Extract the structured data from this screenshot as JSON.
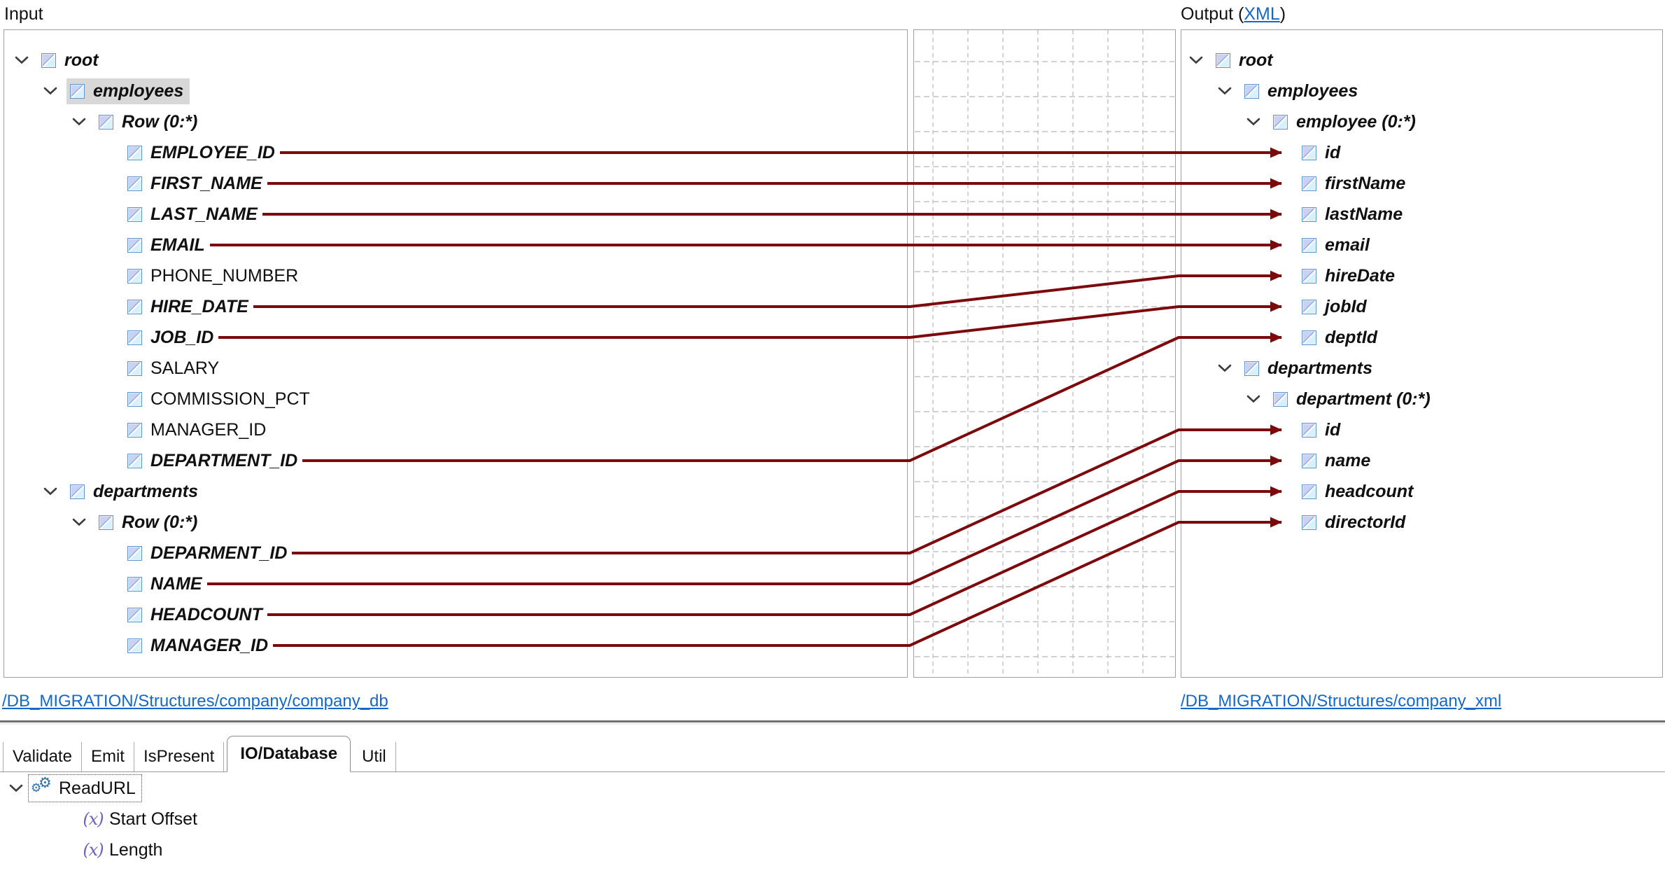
{
  "header": {
    "input_label": "Input",
    "output_prefix": "Output (",
    "output_link_label": "XML",
    "output_suffix": ")"
  },
  "left_tree": {
    "rows": [
      {
        "label": "root",
        "level": 0,
        "chevron": true,
        "emph": true
      },
      {
        "label": "employees",
        "level": 1,
        "chevron": true,
        "emph": true,
        "highlight": true
      },
      {
        "label": "Row (0:*)",
        "level": 2,
        "chevron": true,
        "emph": true
      },
      {
        "label": "EMPLOYEE_ID",
        "level": 3,
        "chevron": false,
        "emph": true
      },
      {
        "label": "FIRST_NAME",
        "level": 3,
        "chevron": false,
        "emph": true
      },
      {
        "label": "LAST_NAME",
        "level": 3,
        "chevron": false,
        "emph": true
      },
      {
        "label": "EMAIL",
        "level": 3,
        "chevron": false,
        "emph": true
      },
      {
        "label": "PHONE_NUMBER",
        "level": 3,
        "chevron": false,
        "emph": false
      },
      {
        "label": "HIRE_DATE",
        "level": 3,
        "chevron": false,
        "emph": true
      },
      {
        "label": "JOB_ID",
        "level": 3,
        "chevron": false,
        "emph": true
      },
      {
        "label": "SALARY",
        "level": 3,
        "chevron": false,
        "emph": false
      },
      {
        "label": "COMMISSION_PCT",
        "level": 3,
        "chevron": false,
        "emph": false
      },
      {
        "label": "MANAGER_ID",
        "level": 3,
        "chevron": false,
        "emph": false
      },
      {
        "label": "DEPARTMENT_ID",
        "level": 3,
        "chevron": false,
        "emph": true
      },
      {
        "label": "departments",
        "level": 1,
        "chevron": true,
        "emph": true
      },
      {
        "label": "Row (0:*)",
        "level": 2,
        "chevron": true,
        "emph": true
      },
      {
        "label": "DEPARMENT_ID",
        "level": 3,
        "chevron": false,
        "emph": true
      },
      {
        "label": "NAME",
        "level": 3,
        "chevron": false,
        "emph": true
      },
      {
        "label": "HEADCOUNT",
        "level": 3,
        "chevron": false,
        "emph": true
      },
      {
        "label": "MANAGER_ID",
        "level": 3,
        "chevron": false,
        "emph": true
      }
    ]
  },
  "right_tree": {
    "rows": [
      {
        "label": "root",
        "level": 0,
        "chevron": true,
        "emph": true
      },
      {
        "label": "employees",
        "level": 1,
        "chevron": true,
        "emph": true
      },
      {
        "label": "employee (0:*)",
        "level": 2,
        "chevron": true,
        "emph": true
      },
      {
        "label": "id",
        "level": 3,
        "chevron": false,
        "emph": true
      },
      {
        "label": "firstName",
        "level": 3,
        "chevron": false,
        "emph": true
      },
      {
        "label": "lastName",
        "level": 3,
        "chevron": false,
        "emph": true
      },
      {
        "label": "email",
        "level": 3,
        "chevron": false,
        "emph": true
      },
      {
        "label": "hireDate",
        "level": 3,
        "chevron": false,
        "emph": true
      },
      {
        "label": "jobId",
        "level": 3,
        "chevron": false,
        "emph": true
      },
      {
        "label": "deptId",
        "level": 3,
        "chevron": false,
        "emph": true
      },
      {
        "label": "departments",
        "level": 1,
        "chevron": true,
        "emph": true
      },
      {
        "label": "department (0:*)",
        "level": 2,
        "chevron": true,
        "emph": true
      },
      {
        "label": "id",
        "level": 3,
        "chevron": false,
        "emph": true
      },
      {
        "label": "name",
        "level": 3,
        "chevron": false,
        "emph": true
      },
      {
        "label": "headcount",
        "level": 3,
        "chevron": false,
        "emph": true
      },
      {
        "label": "directorId",
        "level": 3,
        "chevron": false,
        "emph": true
      }
    ]
  },
  "mappings": [
    {
      "from": 3,
      "to": 3
    },
    {
      "from": 4,
      "to": 4
    },
    {
      "from": 5,
      "to": 5
    },
    {
      "from": 6,
      "to": 6
    },
    {
      "from": 8,
      "to": 7
    },
    {
      "from": 9,
      "to": 8
    },
    {
      "from": 13,
      "to": 9
    },
    {
      "from": 16,
      "to": 12
    },
    {
      "from": 17,
      "to": 13
    },
    {
      "from": 18,
      "to": 14
    },
    {
      "from": 19,
      "to": 15
    }
  ],
  "footer_links": {
    "left": "/DB_MIGRATION/Structures/company/company_db",
    "right": "/DB_MIGRATION/Structures/company_xml"
  },
  "tabs": [
    {
      "label": "Validate",
      "active": false
    },
    {
      "label": "Emit",
      "active": false
    },
    {
      "label": "IsPresent",
      "active": false
    },
    {
      "label": "IO/Database",
      "active": true
    },
    {
      "label": "Util",
      "active": false
    }
  ],
  "function_panel": {
    "root_label": "ReadURL",
    "root_icon": "gears-icon",
    "params": [
      {
        "label": "Start Offset",
        "icon": "variable-x-icon"
      },
      {
        "label": "Length",
        "icon": "variable-x-icon"
      }
    ]
  },
  "colors": {
    "mapping_line": "#7c0a0c",
    "grid_line": "#c2c2c2",
    "panel_border": "#9f9f9f",
    "link": "#1468c8",
    "highlight": "#d8d8d8",
    "node_icon_border": "#5f93c9"
  }
}
